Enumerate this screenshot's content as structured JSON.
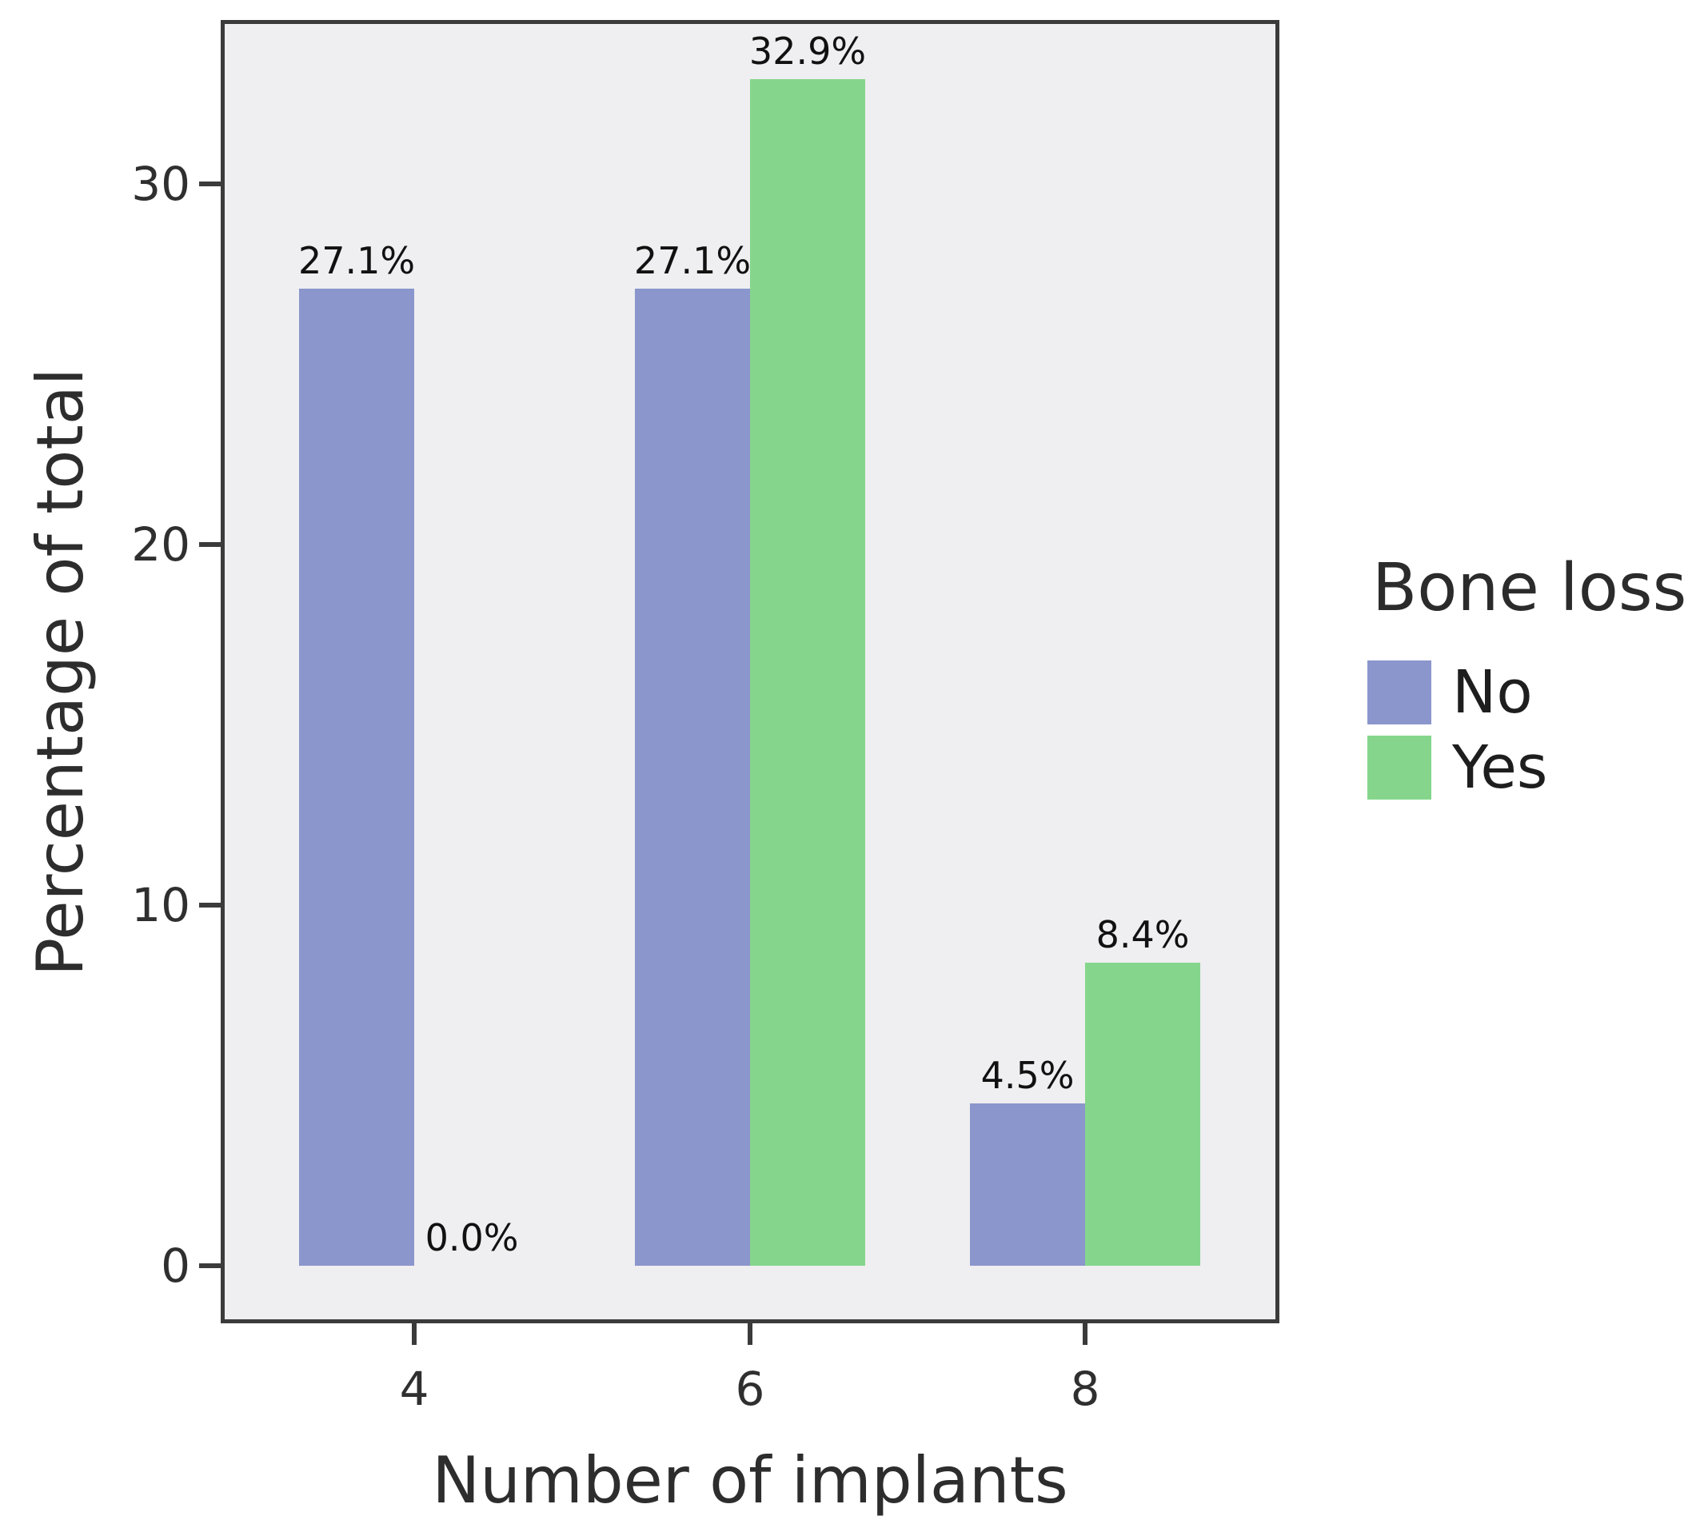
{
  "chart_data": {
    "type": "bar",
    "xlabel": "Number of implants",
    "ylabel": "Percentage of total",
    "categories": [
      "4",
      "6",
      "8"
    ],
    "series": [
      {
        "name": "No",
        "color": "#8b96cd",
        "values": [
          27.1,
          27.1,
          4.5
        ],
        "labels": [
          "27.1%",
          "27.1%",
          "4.5%"
        ]
      },
      {
        "name": "Yes",
        "color": "#85d68c",
        "values": [
          0.0,
          32.9,
          8.4
        ],
        "labels": [
          "0.0%",
          "32.9%",
          "8.4%"
        ]
      }
    ],
    "y_ticks": [
      "0",
      "10",
      "20",
      "30"
    ],
    "ylim": [
      -1.6,
      34.55
    ],
    "legend": {
      "title": "Bone loss",
      "position": "right"
    },
    "grid": false,
    "plot_bg": "#efeef0",
    "frame_color": "#3b3b3b"
  }
}
